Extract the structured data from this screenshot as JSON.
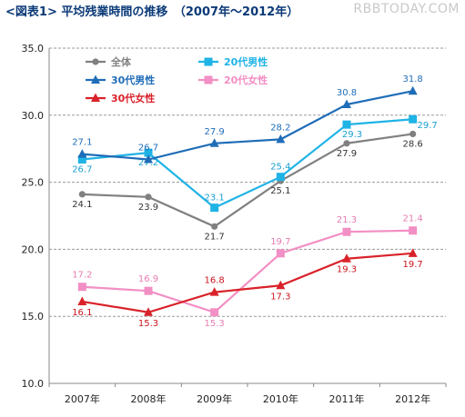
{
  "header": {
    "title": "<図表1> 平均残業時間の推移　（2007年～2012年）",
    "watermark": "RBBTODAY.COM"
  },
  "chart_data": {
    "type": "line",
    "title": "<図表1> 平均残業時間の推移　（2007年～2012年）",
    "categories": [
      "2007年",
      "2008年",
      "2009年",
      "2010年",
      "2011年",
      "2012年"
    ],
    "ylim": [
      10.0,
      35.0
    ],
    "yticks": [
      "10.0",
      "15.0",
      "20.0",
      "25.0",
      "30.0",
      "35.0"
    ],
    "grid": "dashed horizontal",
    "legend": "top-left",
    "series": [
      {
        "name": "全体",
        "values": [
          24.1,
          23.9,
          21.7,
          25.1,
          27.9,
          28.6
        ],
        "color": "#808080",
        "marker": "circle"
      },
      {
        "name": "20代男性",
        "values": [
          26.7,
          27.2,
          23.1,
          25.4,
          29.3,
          29.7
        ],
        "color": "#1fb3e6",
        "marker": "square"
      },
      {
        "name": "30代男性",
        "values": [
          27.1,
          26.7,
          27.9,
          28.2,
          30.8,
          31.8
        ],
        "color": "#1f6db8",
        "marker": "triangle"
      },
      {
        "name": "20代女性",
        "values": [
          17.2,
          16.9,
          15.3,
          19.7,
          21.3,
          21.4
        ],
        "color": "#f28fc4",
        "marker": "square"
      },
      {
        "name": "30代女性",
        "values": [
          16.1,
          15.3,
          16.8,
          17.3,
          19.3,
          19.7
        ],
        "color": "#d9222a",
        "marker": "triangle"
      }
    ]
  }
}
